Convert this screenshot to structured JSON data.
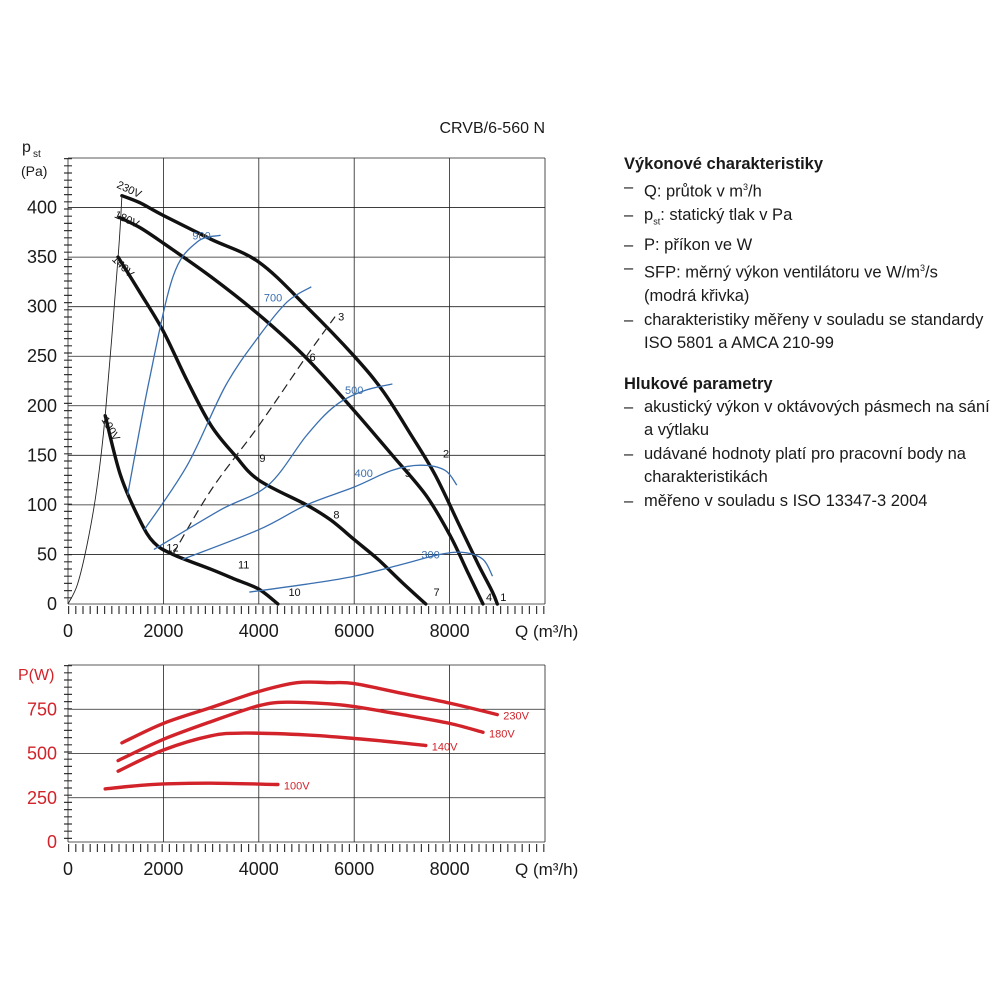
{
  "chart_data": [
    {
      "type": "line",
      "title": "CRVB/6-560 N",
      "ylabel": [
        "p",
        "st",
        "(Pa)"
      ],
      "xlabel": "Q (m³/h)",
      "xlim": [
        0,
        10000
      ],
      "ylim": [
        0,
        450
      ],
      "x_ticks": [
        0,
        2000,
        4000,
        6000,
        8000
      ],
      "y_ticks": [
        0,
        50,
        100,
        150,
        200,
        250,
        300,
        350,
        400
      ],
      "grid": true,
      "series": [
        {
          "name": "230V",
          "style": "black-thick",
          "points": [
            [
              1130,
              412
            ],
            [
              1500,
              405
            ],
            [
              2000,
              392
            ],
            [
              3000,
              368
            ],
            [
              4000,
              345
            ],
            [
              5000,
              300
            ],
            [
              6000,
              250
            ],
            [
              6600,
              215
            ],
            [
              7200,
              170
            ],
            [
              7700,
              130
            ],
            [
              8200,
              80
            ],
            [
              8600,
              40
            ],
            [
              8900,
              12
            ],
            [
              9000,
              0
            ]
          ]
        },
        {
          "name": "180V",
          "style": "black-thick",
          "points": [
            [
              1080,
              390
            ],
            [
              1500,
              380
            ],
            [
              2000,
              364
            ],
            [
              3000,
              330
            ],
            [
              4000,
              292
            ],
            [
              5000,
              248
            ],
            [
              6000,
              195
            ],
            [
              6800,
              150
            ],
            [
              7500,
              110
            ],
            [
              8000,
              70
            ],
            [
              8400,
              30
            ],
            [
              8700,
              0
            ]
          ]
        },
        {
          "name": "140V",
          "style": "black-thick",
          "points": [
            [
              1050,
              350
            ],
            [
              1500,
              315
            ],
            [
              2000,
              275
            ],
            [
              2500,
              225
            ],
            [
              3000,
              180
            ],
            [
              3500,
              150
            ],
            [
              4000,
              125
            ],
            [
              5000,
              100
            ],
            [
              5500,
              85
            ],
            [
              6000,
              65
            ],
            [
              6500,
              45
            ],
            [
              7000,
              22
            ],
            [
              7500,
              0
            ]
          ]
        },
        {
          "name": "100V",
          "style": "black-thick",
          "points": [
            [
              780,
              190
            ],
            [
              1100,
              130
            ],
            [
              1500,
              85
            ],
            [
              1800,
              62
            ],
            [
              2200,
              50
            ],
            [
              3000,
              35
            ],
            [
              3500,
              25
            ],
            [
              4000,
              15
            ],
            [
              4400,
              0
            ]
          ]
        },
        {
          "name": "",
          "style": "black-thin-system",
          "points": [
            [
              0,
              0
            ],
            [
              200,
              20
            ],
            [
              400,
              60
            ],
            [
              600,
              115
            ],
            [
              780,
              190
            ],
            [
              1050,
              350
            ],
            [
              1130,
              412
            ]
          ]
        },
        {
          "name": "",
          "style": "black-dashed",
          "points": [
            [
              2200,
              50
            ],
            [
              3000,
              115
            ],
            [
              4000,
              180
            ],
            [
              5000,
              250
            ],
            [
              5600,
              290
            ]
          ]
        },
        {
          "name": "900",
          "style": "blue-thin",
          "points": [
            [
              1250,
              110
            ],
            [
              1700,
              225
            ],
            [
              2200,
              330
            ],
            [
              2700,
              365
            ],
            [
              3200,
              372
            ]
          ]
        },
        {
          "name": "700",
          "style": "blue-thin",
          "points": [
            [
              1600,
              75
            ],
            [
              2500,
              140
            ],
            [
              3300,
              220
            ],
            [
              4000,
              270
            ],
            [
              4600,
              305
            ],
            [
              5100,
              320
            ]
          ]
        },
        {
          "name": "500",
          "style": "blue-thin",
          "points": [
            [
              1800,
              55
            ],
            [
              3200,
              95
            ],
            [
              4200,
              120
            ],
            [
              5000,
              170
            ],
            [
              5600,
              200
            ],
            [
              6200,
              215
            ],
            [
              6800,
              222
            ]
          ]
        },
        {
          "name": "400",
          "style": "blue-thin",
          "points": [
            [
              2400,
              45
            ],
            [
              4000,
              75
            ],
            [
              5000,
              100
            ],
            [
              6000,
              118
            ],
            [
              6800,
              135
            ],
            [
              7400,
              140
            ],
            [
              7900,
              135
            ],
            [
              8150,
              120
            ]
          ]
        },
        {
          "name": "300",
          "style": "blue-thin",
          "points": [
            [
              3800,
              12
            ],
            [
              5000,
              20
            ],
            [
              6000,
              28
            ],
            [
              7000,
              40
            ],
            [
              7800,
              50
            ],
            [
              8300,
              52
            ],
            [
              8700,
              45
            ],
            [
              8900,
              28
            ]
          ]
        }
      ],
      "series_labels": [
        {
          "text": "230V",
          "x": 1250,
          "y": 415
        },
        {
          "text": "180V",
          "x": 1200,
          "y": 385
        },
        {
          "text": "140V",
          "x": 1100,
          "y": 338
        },
        {
          "text": "100V",
          "x": 830,
          "y": 175
        },
        {
          "text": "900",
          "x": 2800,
          "y": 368
        },
        {
          "text": "700",
          "x": 4300,
          "y": 305
        },
        {
          "text": "500",
          "x": 6000,
          "y": 212
        },
        {
          "text": "400",
          "x": 6200,
          "y": 128
        },
        {
          "text": "300",
          "x": 7600,
          "y": 46
        },
        {
          "text": "10",
          "x": 4750,
          "y": 8
        }
      ],
      "operating_points": [
        {
          "label": "1",
          "x": 9000,
          "y": 0
        },
        {
          "label": "2",
          "x": 7800,
          "y": 145
        },
        {
          "label": "3",
          "x": 5600,
          "y": 283
        },
        {
          "label": "4",
          "x": 8700,
          "y": 0
        },
        {
          "label": "5",
          "x": 7000,
          "y": 125
        },
        {
          "label": "6",
          "x": 5000,
          "y": 242
        },
        {
          "label": "7",
          "x": 7600,
          "y": 5
        },
        {
          "label": "8",
          "x": 5500,
          "y": 83
        },
        {
          "label": "9",
          "x": 3950,
          "y": 140
        },
        {
          "label": "11",
          "x": 3500,
          "y": 33
        },
        {
          "label": "12",
          "x": 2000,
          "y": 50
        }
      ]
    },
    {
      "type": "line",
      "ylabel": "P(W)",
      "xlabel": "Q (m³/h)",
      "xlim": [
        0,
        10000
      ],
      "ylim": [
        0,
        1000
      ],
      "x_ticks": [
        0,
        2000,
        4000,
        6000,
        8000
      ],
      "y_ticks": [
        0,
        250,
        500,
        750
      ],
      "grid": true,
      "series": [
        {
          "name": "230V",
          "points": [
            [
              1130,
              560
            ],
            [
              2000,
              670
            ],
            [
              3000,
              760
            ],
            [
              4000,
              850
            ],
            [
              4800,
              900
            ],
            [
              5500,
              900
            ],
            [
              6000,
              895
            ],
            [
              7000,
              840
            ],
            [
              8000,
              785
            ],
            [
              9000,
              720
            ]
          ]
        },
        {
          "name": "180V",
          "points": [
            [
              1050,
              460
            ],
            [
              2000,
              580
            ],
            [
              3000,
              680
            ],
            [
              4000,
              770
            ],
            [
              4600,
              790
            ],
            [
              5500,
              780
            ],
            [
              6000,
              765
            ],
            [
              7000,
              720
            ],
            [
              8000,
              670
            ],
            [
              8700,
              620
            ]
          ]
        },
        {
          "name": "140V",
          "points": [
            [
              1050,
              400
            ],
            [
              2000,
              520
            ],
            [
              3000,
              600
            ],
            [
              3700,
              615
            ],
            [
              5000,
              605
            ],
            [
              6000,
              585
            ],
            [
              7000,
              560
            ],
            [
              7500,
              545
            ]
          ]
        },
        {
          "name": "100V",
          "points": [
            [
              780,
              300
            ],
            [
              1500,
              320
            ],
            [
              2000,
              328
            ],
            [
              3000,
              332
            ],
            [
              4400,
              325
            ]
          ]
        }
      ]
    }
  ],
  "info": {
    "performance_heading": "Výkonové charakteristiky",
    "performance_items": {
      "q_prefix": "Q: průtok v m",
      "q_sup": "3",
      "q_suffix": "/h",
      "p_prefix": "p",
      "p_sub": "st",
      "p_suffix": ": statický tlak v Pa",
      "power": "P: příkon ve W",
      "sfp_prefix": "SFP: měrný výkon ventilátoru ve W/m",
      "sfp_sup": "3",
      "sfp_suffix": "/s (modrá křivka)",
      "standards": "charakteristiky měřeny v souladu se standardy ISO 5801 a AMCA 210-99"
    },
    "noise_heading": "Hlukové parametry",
    "noise_items": [
      "akustický výkon v oktávových pásmech na sání a výtlaku",
      "udávané hodnoty platí pro pracovní body na charakteristikách",
      "měřeno v souladu s ISO 13347-3 2004"
    ],
    "colors": {
      "curve": "#111111",
      "sfp": "#3a6fb0",
      "power": "#d2232a",
      "grid": "#222222"
    }
  }
}
